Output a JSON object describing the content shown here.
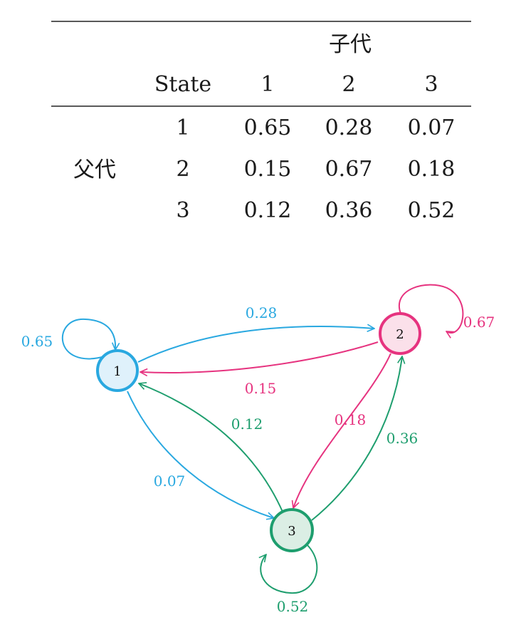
{
  "table": {
    "column_group_header": "子代",
    "row_group_header": "父代",
    "state_header": "State",
    "column_states": [
      "1",
      "2",
      "3"
    ],
    "row_states": [
      "1",
      "2",
      "3"
    ],
    "matrix": [
      [
        "0.65",
        "0.28",
        "0.07"
      ],
      [
        "0.15",
        "0.67",
        "0.18"
      ],
      [
        "0.12",
        "0.36",
        "0.52"
      ]
    ]
  },
  "diagram": {
    "nodes": [
      {
        "id": "1",
        "label": "1",
        "stroke": "#29a8e0",
        "fill": "#dff1fb"
      },
      {
        "id": "2",
        "label": "2",
        "stroke": "#e6337f",
        "fill": "#fbe0ea"
      },
      {
        "id": "3",
        "label": "3",
        "stroke": "#1e9e6e",
        "fill": "#dbeee4"
      }
    ],
    "edges": [
      {
        "from": "1",
        "to": "1",
        "label": "0.65",
        "color": "#29a8e0"
      },
      {
        "from": "1",
        "to": "2",
        "label": "0.28",
        "color": "#29a8e0"
      },
      {
        "from": "1",
        "to": "3",
        "label": "0.07",
        "color": "#29a8e0"
      },
      {
        "from": "2",
        "to": "1",
        "label": "0.15",
        "color": "#e6337f"
      },
      {
        "from": "2",
        "to": "2",
        "label": "0.67",
        "color": "#e6337f"
      },
      {
        "from": "2",
        "to": "3",
        "label": "0.18",
        "color": "#e6337f"
      },
      {
        "from": "3",
        "to": "1",
        "label": "0.12",
        "color": "#1e9e6e"
      },
      {
        "from": "3",
        "to": "2",
        "label": "0.36",
        "color": "#1e9e6e"
      },
      {
        "from": "3",
        "to": "3",
        "label": "0.52",
        "color": "#1e9e6e"
      }
    ]
  }
}
